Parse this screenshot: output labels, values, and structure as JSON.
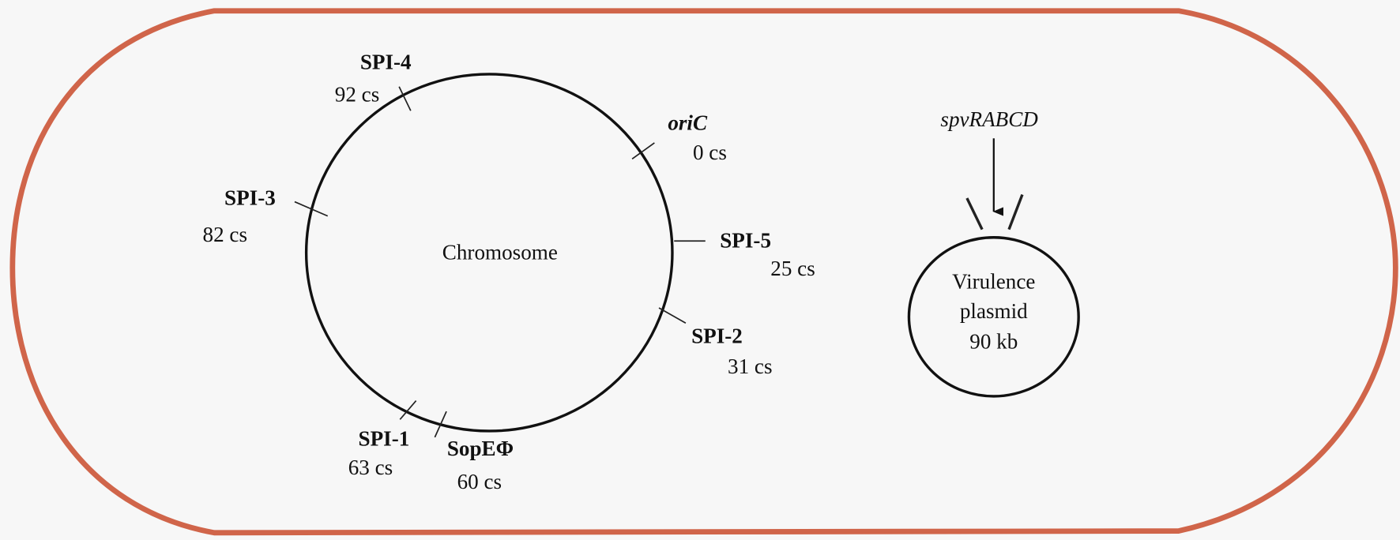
{
  "chromosome": {
    "label": "Chromosome",
    "markers": [
      {
        "name": "SPI-4",
        "position": "92 cs"
      },
      {
        "name": "oriC",
        "position": "0 cs"
      },
      {
        "name": "SPI-5",
        "position": "25 cs"
      },
      {
        "name": "SPI-2",
        "position": "31 cs"
      },
      {
        "name": "SPI-1",
        "position": "63 cs"
      },
      {
        "name": "SopEΦ",
        "position": "60 cs"
      },
      {
        "name": "SPI-3",
        "position": "82 cs"
      }
    ]
  },
  "plasmid": {
    "lines": [
      "Virulence",
      "plasmid",
      "90 kb"
    ],
    "gene": "spvRABCD"
  }
}
